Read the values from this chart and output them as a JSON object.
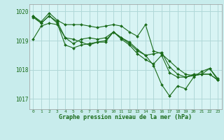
{
  "title": "Graphe pression niveau de la mer (hPa)",
  "background_color": "#c8ecec",
  "plot_bg_color": "#d8f4f4",
  "line_color": "#1a6b1a",
  "grid_color": "#b0d8d8",
  "tick_color": "#1a6b1a",
  "xlim": [
    -0.5,
    23.5
  ],
  "ylim": [
    1016.65,
    1020.25
  ],
  "yticks": [
    1017,
    1018,
    1019,
    1020
  ],
  "xticks": [
    0,
    1,
    2,
    3,
    4,
    5,
    6,
    7,
    8,
    9,
    10,
    11,
    12,
    13,
    14,
    15,
    16,
    17,
    18,
    19,
    20,
    21,
    22,
    23
  ],
  "series": [
    [
      1019.85,
      1019.65,
      1019.95,
      1019.7,
      1019.55,
      1019.55,
      1019.55,
      1019.5,
      1019.45,
      1019.5,
      1019.55,
      1019.5,
      1019.3,
      1019.15,
      1019.55,
      1018.65,
      1018.55,
      1018.3,
      1018.05,
      1017.85,
      1017.8,
      1017.85,
      1018.05,
      1017.7
    ],
    [
      1019.8,
      1019.6,
      1019.85,
      1019.65,
      1019.1,
      1018.9,
      1019.05,
      1019.1,
      1019.05,
      1019.1,
      1019.3,
      1019.1,
      1018.9,
      1018.65,
      1018.5,
      1018.55,
      1018.6,
      1018.1,
      1017.85,
      1017.75,
      1017.85,
      1017.85,
      1017.85,
      1017.65
    ],
    [
      1019.85,
      1019.6,
      1019.85,
      1019.6,
      1018.85,
      1018.75,
      1018.85,
      1018.9,
      1018.95,
      1019.0,
      1019.3,
      1019.05,
      1018.85,
      1018.55,
      1018.35,
      1018.2,
      1018.5,
      1017.9,
      1017.75,
      1017.75,
      1017.8,
      1017.85,
      1017.85,
      1017.65
    ],
    [
      1019.05,
      1019.5,
      1019.6,
      1019.55,
      1019.1,
      1019.05,
      1018.95,
      1018.85,
      1018.95,
      1018.95,
      1019.3,
      1019.1,
      1018.95,
      1018.7,
      1018.5,
      1018.15,
      1017.5,
      1017.1,
      1017.45,
      1017.35,
      1017.75,
      1017.95,
      1018.05,
      1017.65
    ]
  ]
}
